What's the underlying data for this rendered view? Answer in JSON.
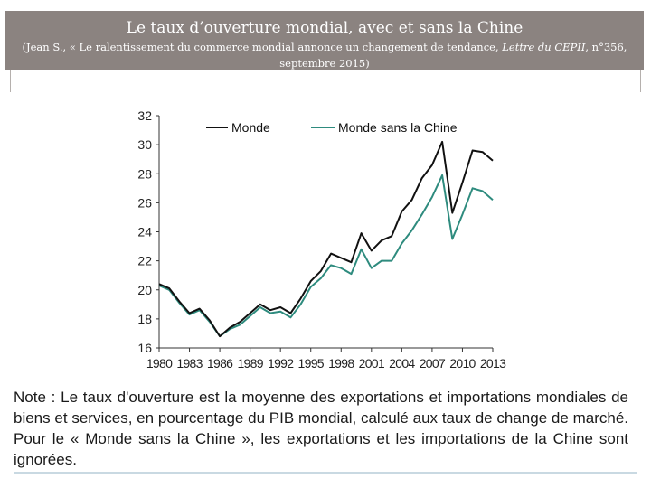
{
  "header": {
    "title": "Le taux d’ouverture mondial, avec et sans la Chine",
    "subtitle_pre": "(Jean S., « Le ralentissement du commerce mondial annonce un changement de tendance, ",
    "subtitle_italic": "Lettre du CEPII",
    "subtitle_post": ", n°356, septembre 2015)"
  },
  "chart_data": {
    "type": "line",
    "title": "",
    "xlabel": "",
    "ylabel": "",
    "xlim": [
      1980,
      2013
    ],
    "ylim": [
      16,
      32
    ],
    "y_ticks": [
      16,
      18,
      20,
      22,
      24,
      26,
      28,
      30,
      32
    ],
    "y_tick_labels": [
      "16",
      "18",
      "20",
      "22",
      "24",
      "26",
      "28",
      "30",
      "32"
    ],
    "x_ticks": [
      1980,
      1983,
      1986,
      1989,
      1992,
      1995,
      1998,
      2001,
      2004,
      2007,
      2010,
      2013
    ],
    "x_tick_labels": [
      "1980",
      "1983",
      "1986",
      "1989",
      "1992",
      "1995",
      "1998",
      "2001",
      "2004",
      "2007",
      "2010",
      "2013"
    ],
    "grid": false,
    "legend_position": "top",
    "x": [
      1980,
      1981,
      1982,
      1983,
      1984,
      1985,
      1986,
      1987,
      1988,
      1989,
      1990,
      1991,
      1992,
      1993,
      1994,
      1995,
      1996,
      1997,
      1998,
      1999,
      2000,
      2001,
      2002,
      2003,
      2004,
      2005,
      2006,
      2007,
      2008,
      2009,
      2010,
      2011,
      2012,
      2013
    ],
    "series": [
      {
        "name": "Monde",
        "color": "#111111",
        "values": [
          20.4,
          20.1,
          19.2,
          18.4,
          18.7,
          17.9,
          16.8,
          17.4,
          17.8,
          18.4,
          19.0,
          18.6,
          18.8,
          18.4,
          19.4,
          20.6,
          21.3,
          22.5,
          22.2,
          21.9,
          23.9,
          22.7,
          23.4,
          23.7,
          25.4,
          26.2,
          27.7,
          28.6,
          30.2,
          25.3,
          27.4,
          29.6,
          29.5,
          28.9
        ]
      },
      {
        "name": "Monde sans la Chine",
        "color": "#2e8b7e",
        "values": [
          20.3,
          20.0,
          19.1,
          18.3,
          18.6,
          17.8,
          16.8,
          17.3,
          17.6,
          18.2,
          18.8,
          18.4,
          18.5,
          18.1,
          19.0,
          20.2,
          20.8,
          21.7,
          21.5,
          21.1,
          22.8,
          21.5,
          22.0,
          22.0,
          23.2,
          24.1,
          25.2,
          26.4,
          27.9,
          23.5,
          25.2,
          27.0,
          26.8,
          26.2
        ]
      }
    ]
  },
  "note": "Note : Le taux d'ouverture est la moyenne des exportations et importations mondiales de biens et services, en pourcentage du PIB mondial, calculé aux taux de change de marché. Pour le « Monde sans la Chine », les exportations et les importations de la Chine sont ignorées."
}
